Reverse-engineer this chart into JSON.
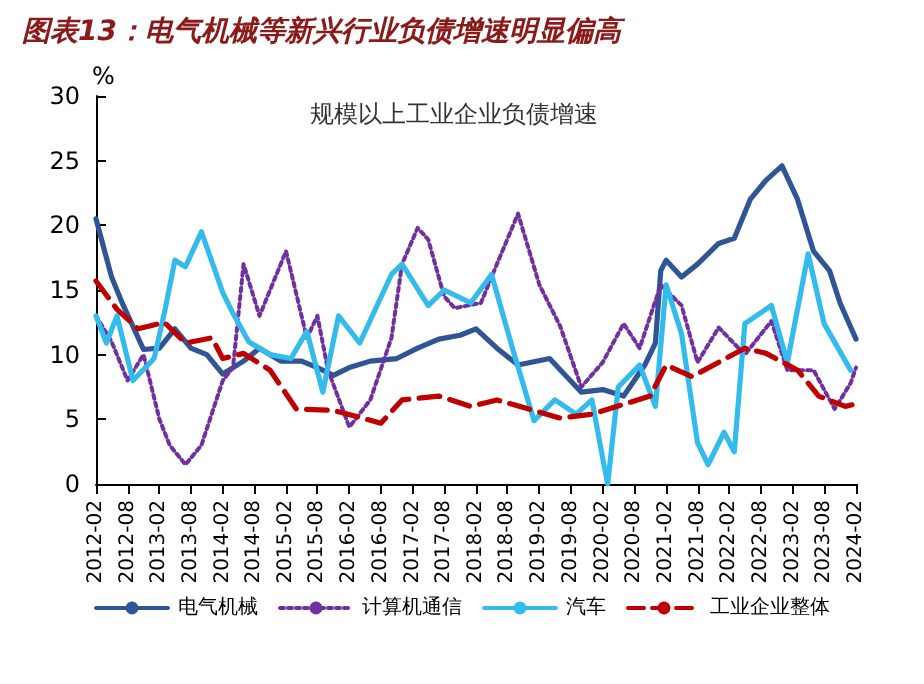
{
  "chart_data": {
    "type": "line",
    "title": "图表13：电气机械等新兴行业负债增速明显偏高",
    "subtitle": "规模以上工业企业负债增速",
    "ylabel": "%",
    "ylim": [
      0,
      30
    ],
    "yticks": [
      0,
      5,
      10,
      15,
      20,
      25,
      30
    ],
    "xlim": [
      "2012-02",
      "2024-02"
    ],
    "xticks": [
      "2012-02",
      "2012-08",
      "2013-02",
      "2013-08",
      "2014-02",
      "2014-08",
      "2015-02",
      "2015-08",
      "2016-02",
      "2016-08",
      "2017-02",
      "2017-08",
      "2018-02",
      "2018-08",
      "2019-02",
      "2019-08",
      "2020-02",
      "2020-08",
      "2021-02",
      "2021-08",
      "2022-02",
      "2022-08",
      "2023-02",
      "2023-08",
      "2024-02"
    ],
    "grid": false,
    "legend": "bottom",
    "marker": "none",
    "series": [
      {
        "name": "电气机械",
        "color": "#2f5597",
        "line_style": "solid",
        "x": [
          "2012-02",
          "2012-05",
          "2012-07",
          "2012-11",
          "2013-02",
          "2013-05",
          "2013-08",
          "2013-11",
          "2014-02",
          "2014-06",
          "2014-09",
          "2015-01",
          "2015-05",
          "2015-08",
          "2015-11",
          "2016-02",
          "2016-06",
          "2016-11",
          "2017-03",
          "2017-07",
          "2017-11",
          "2018-02",
          "2018-06",
          "2018-10",
          "2019-04",
          "2019-10",
          "2020-02",
          "2020-06",
          "2020-10",
          "2020-12",
          "2021-01",
          "2021-02",
          "2021-05",
          "2021-08",
          "2021-12",
          "2022-03",
          "2022-06",
          "2022-09",
          "2022-12",
          "2023-03",
          "2023-06",
          "2023-09",
          "2023-11",
          "2024-02"
        ],
        "values": [
          20.5,
          16,
          14,
          10.4,
          10.5,
          12,
          10.5,
          10,
          8.5,
          9.5,
          10.5,
          9.5,
          9.5,
          9,
          8.4,
          9,
          9.5,
          9.7,
          10.5,
          11.2,
          11.5,
          12,
          10.5,
          9.2,
          9.7,
          7.1,
          7.3,
          6.8,
          9.2,
          10.9,
          16.5,
          17.3,
          16,
          17,
          18.6,
          19,
          22,
          23.5,
          24.6,
          22,
          18,
          16.5,
          14,
          11.2
        ]
      },
      {
        "name": "计算机通信",
        "color": "#7030a0",
        "line_style": "dotted",
        "x": [
          "2012-02",
          "2012-05",
          "2012-08",
          "2012-11",
          "2013-02",
          "2013-04",
          "2013-07",
          "2013-10",
          "2014-02",
          "2014-04",
          "2014-06",
          "2014-09",
          "2014-11",
          "2015-02",
          "2015-06",
          "2015-08",
          "2015-10",
          "2016-02",
          "2016-06",
          "2016-10",
          "2016-12",
          "2017-03",
          "2017-05",
          "2017-08",
          "2017-10",
          "2018-03",
          "2018-06",
          "2018-10",
          "2019-02",
          "2019-06",
          "2019-10",
          "2020-02",
          "2020-06",
          "2020-09",
          "2021-01",
          "2021-05",
          "2021-08",
          "2021-12",
          "2022-05",
          "2022-10",
          "2023-01",
          "2023-06",
          "2023-10",
          "2024-01",
          "2024-02"
        ],
        "values": [
          13,
          11,
          8,
          10,
          5,
          3,
          1.5,
          3,
          8,
          9,
          17,
          13,
          15,
          18,
          11.3,
          13,
          8.8,
          4.4,
          6.5,
          11.3,
          17,
          19.8,
          18.9,
          14.5,
          13.6,
          14,
          17,
          20.9,
          15.4,
          12.2,
          7.5,
          9.4,
          12.4,
          10.5,
          15.4,
          13.8,
          9.4,
          12.1,
          10,
          12.6,
          8.8,
          8.8,
          5.8,
          7.8,
          9
        ]
      },
      {
        "name": "汽车",
        "color": "#33bbee",
        "line_style": "solid",
        "x": [
          "2012-02",
          "2012-04",
          "2012-06",
          "2012-09",
          "2013-01",
          "2013-03",
          "2013-05",
          "2013-07",
          "2013-10",
          "2014-02",
          "2014-04",
          "2014-07",
          "2014-11",
          "2015-03",
          "2015-06",
          "2015-09",
          "2015-12",
          "2016-04",
          "2016-10",
          "2016-12",
          "2017-05",
          "2017-08",
          "2018-01",
          "2018-05",
          "2018-09",
          "2019-01",
          "2019-05",
          "2019-09",
          "2019-12",
          "2020-02",
          "2020-03",
          "2020-05",
          "2020-09",
          "2020-12",
          "2021-02",
          "2021-05",
          "2021-08",
          "2021-10",
          "2022-01",
          "2022-03",
          "2022-05",
          "2022-10",
          "2023-01",
          "2023-05",
          "2023-08",
          "2024-01"
        ],
        "values": [
          13,
          10.9,
          13,
          8,
          9.7,
          13.2,
          17.3,
          16.8,
          19.5,
          14.8,
          13.2,
          11,
          10,
          9.7,
          11.8,
          7.1,
          13,
          10.9,
          16.2,
          17,
          13.8,
          15,
          14,
          16.2,
          10.4,
          4.9,
          6.5,
          5.4,
          6.5,
          2,
          0,
          7.5,
          9.2,
          6,
          15.4,
          11.6,
          3.2,
          1.5,
          4,
          2.5,
          12.4,
          13.8,
          9.4,
          17.8,
          12.4,
          8.8
        ]
      },
      {
        "name": "工业企业整体",
        "color": "#c00000",
        "line_style": "dashed",
        "x": [
          "2012-02",
          "2012-06",
          "2012-10",
          "2013-03",
          "2013-07",
          "2013-12",
          "2014-02",
          "2014-06",
          "2014-11",
          "2015-04",
          "2015-11",
          "2016-08",
          "2016-12",
          "2017-07",
          "2018-01",
          "2018-06",
          "2019-06",
          "2019-12",
          "2020-11",
          "2021-02",
          "2021-07",
          "2022-05",
          "2022-09",
          "2023-03",
          "2023-07",
          "2023-12",
          "2024-02"
        ],
        "values": [
          15.7,
          13.5,
          12,
          12.5,
          10.9,
          11.3,
          9.7,
          10.1,
          8.8,
          5.8,
          5.7,
          4.7,
          6.5,
          6.8,
          6,
          6.5,
          5.1,
          5.4,
          6.8,
          9.2,
          8.3,
          10.5,
          10.1,
          8.8,
          6.8,
          6,
          6.2
        ]
      }
    ]
  }
}
